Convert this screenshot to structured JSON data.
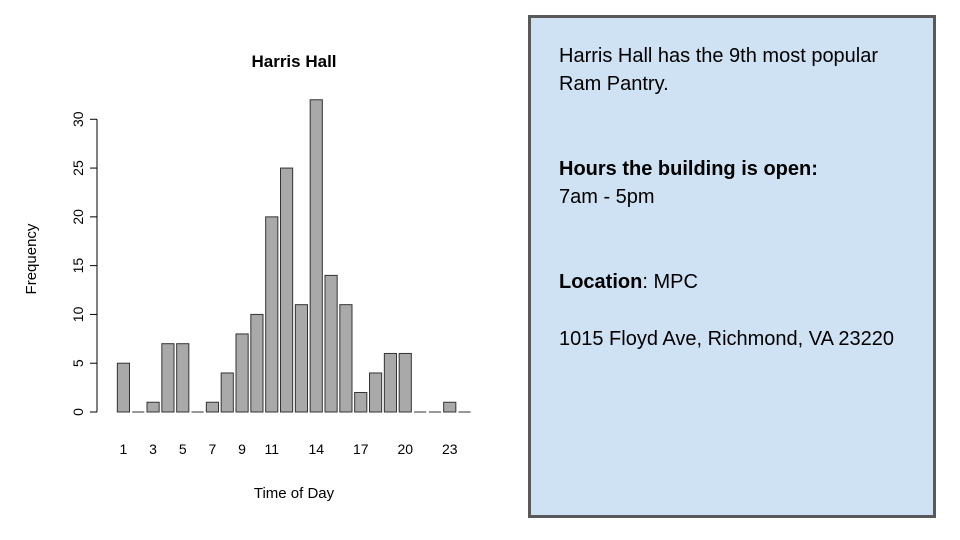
{
  "chart_data": {
    "type": "bar",
    "title": "Harris Hall",
    "xlabel": "Time of Day",
    "ylabel": "Frequency",
    "categories": [
      "1",
      "2",
      "3",
      "4",
      "5",
      "6",
      "7",
      "8",
      "9",
      "10",
      "11",
      "12",
      "13",
      "14",
      "15",
      "16",
      "17",
      "18",
      "19",
      "20",
      "21",
      "22",
      "23",
      "24"
    ],
    "values": [
      5,
      0,
      1,
      7,
      7,
      0,
      1,
      4,
      8,
      10,
      20,
      25,
      11,
      32,
      14,
      11,
      2,
      4,
      6,
      6,
      0,
      0,
      1,
      0
    ],
    "x_tick_labels": [
      "1",
      "3",
      "5",
      "7",
      "9",
      "11",
      "14",
      "17",
      "20",
      "23"
    ],
    "y_ticks": [
      0,
      5,
      10,
      15,
      20,
      25,
      30
    ],
    "ylim": [
      0,
      33
    ],
    "bar_color": "#a9a9a9",
    "grid": false
  },
  "info": {
    "intro": "Harris Hall has the 9th most popular Ram Pantry.",
    "hours_label": "Hours the building is open:",
    "hours_value": "7am - 5pm",
    "location_label": "Location",
    "location_sep": ": ",
    "location_value": "MPC",
    "address": "1015 Floyd Ave, Richmond, VA 23220"
  },
  "colors": {
    "info_background": "#cfe2f3",
    "info_border": "#595959"
  }
}
